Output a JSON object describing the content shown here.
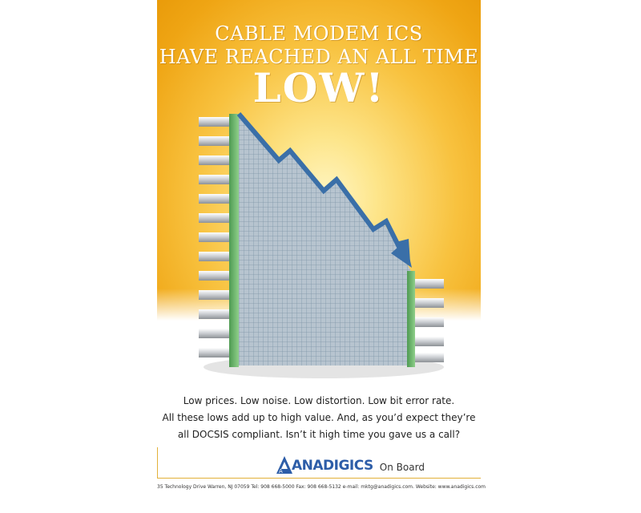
{
  "headline": {
    "line1": "CABLE MODEM ICS",
    "line2": "HAVE REACHED AN ALL TIME",
    "line3": "LOW!"
  },
  "body": {
    "line1": "Low prices. Low noise. Low distortion. Low bit error rate.",
    "line2": "All these lows add up to high value. And, as you’d expect they’re",
    "line3": "all DOCSIS compliant. Isn’t it high time you gave us a call?"
  },
  "brand": {
    "name": "ANADIGICS",
    "tagline": "On Board",
    "logo_letter": "A"
  },
  "footer": {
    "contact": "35 Technology Drive  Warren, NJ  07059  Tel: 908 668-5000  Fax: 908 668-5132  e-mail: mktg@anadigics.com.  Website: www.anadigics.com"
  },
  "colors": {
    "background_yellow": "#f8c23f",
    "headline_text": "#ffffff",
    "arrow_blue": "#3a6fa8",
    "chip_green": "#6fae6e",
    "brand_blue": "#2d5da8"
  },
  "illustration": {
    "subject": "ic-chip-with-declining-arrow",
    "arrow_icon": "down-trend-arrow-icon"
  }
}
